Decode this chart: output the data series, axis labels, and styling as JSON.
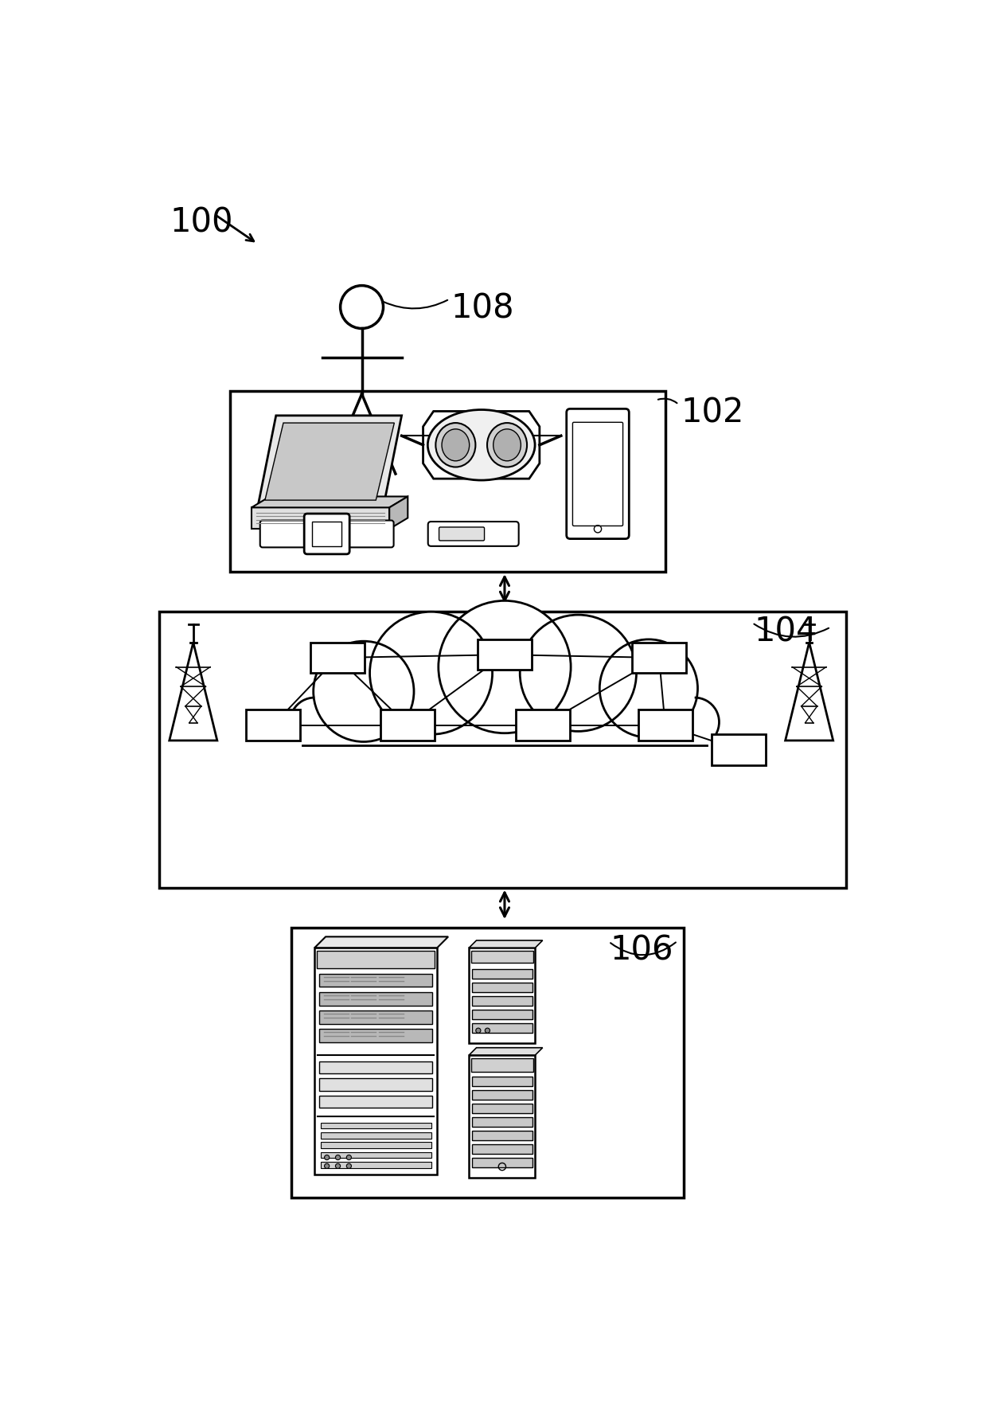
{
  "bg_color": "#ffffff",
  "line_color": "#000000",
  "label_100": "100",
  "label_102": "102",
  "label_104": "104",
  "label_106": "106",
  "label_108": "108",
  "figsize": [
    12.4,
    17.82
  ],
  "dpi": 100
}
